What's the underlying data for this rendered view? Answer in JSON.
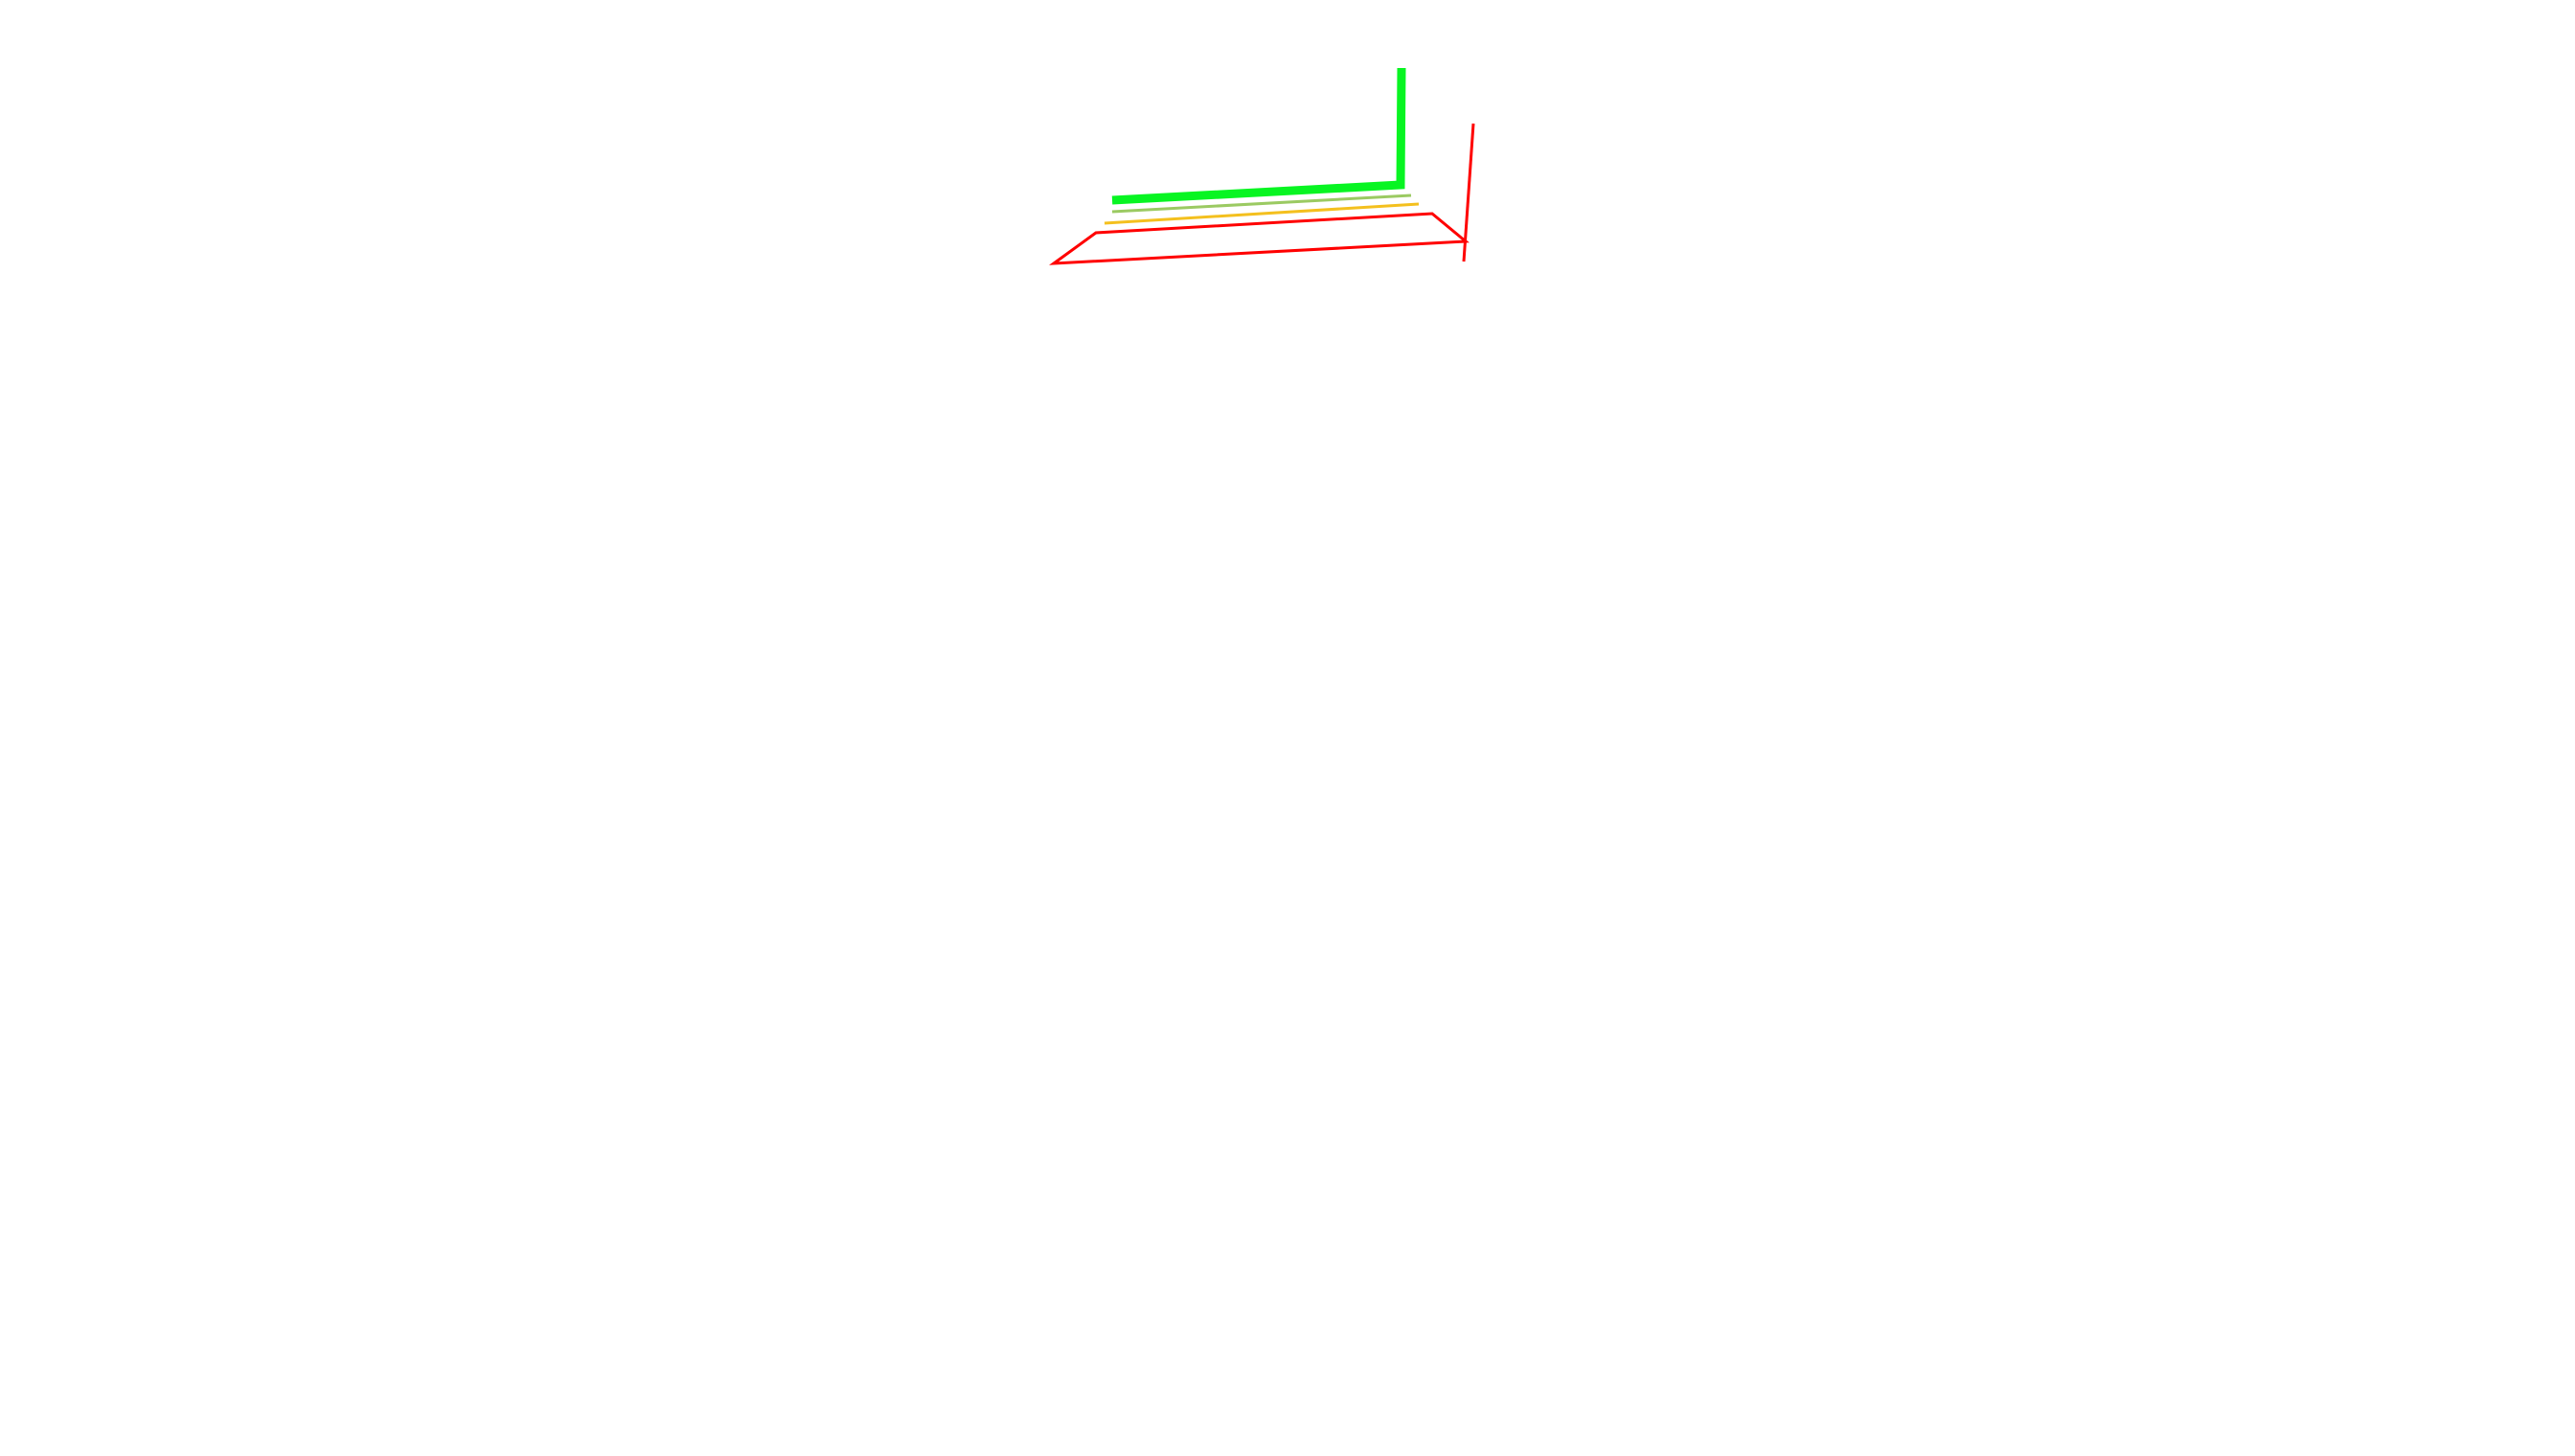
{
  "colors": {
    "background": "#ffffff",
    "bright_green": "#08f522",
    "light_green": "#9bca62",
    "yellow": "#f4c01e",
    "red": "#ff0000"
  }
}
